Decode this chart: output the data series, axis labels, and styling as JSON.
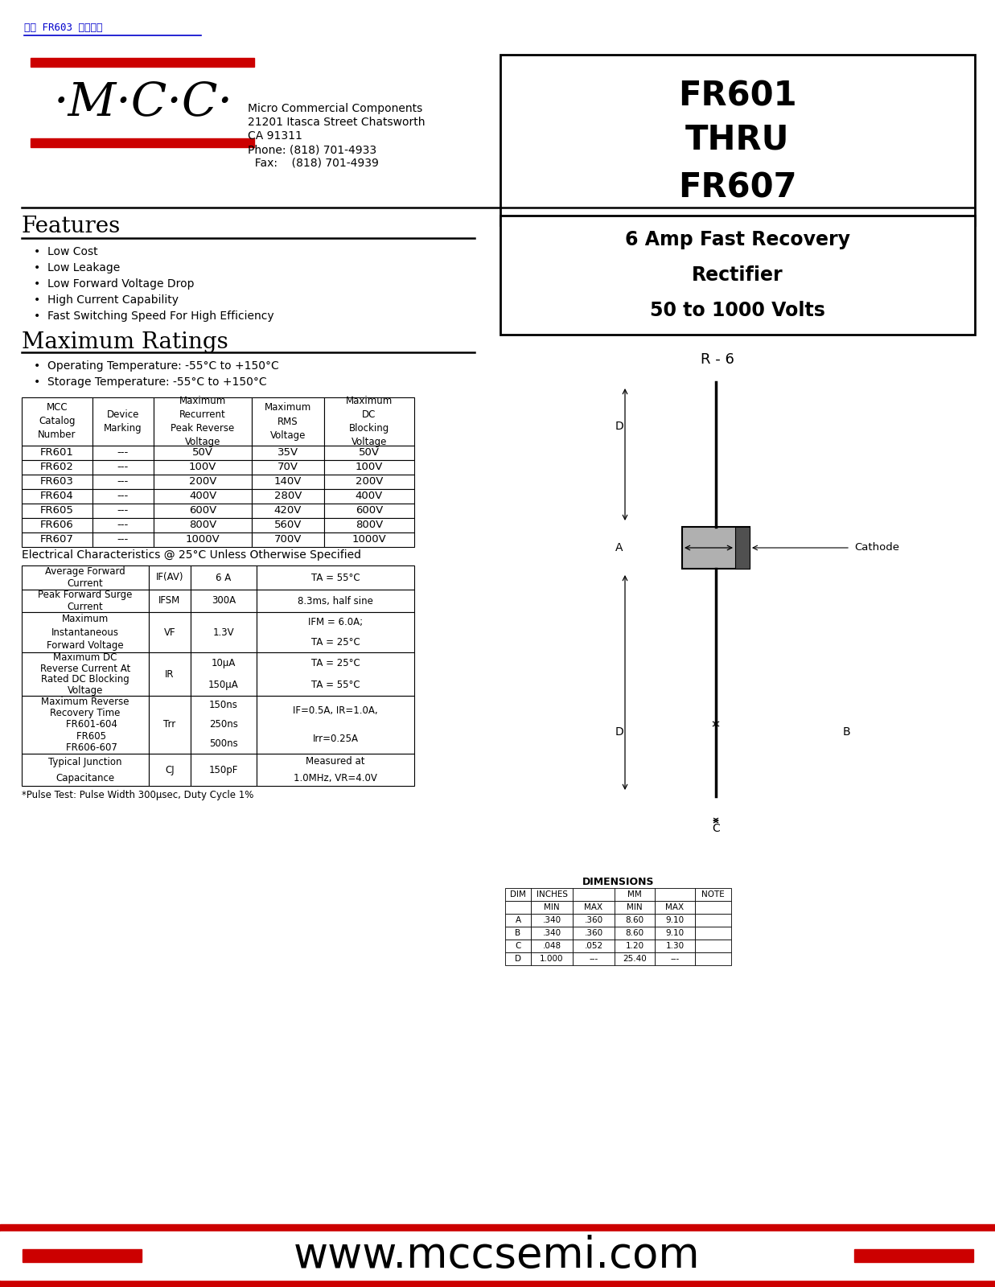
{
  "title_box": "FR601\nTHRU\nFR607",
  "subtitle": "6 Amp Fast Recovery\nRectifier\n50 to 1000 Volts",
  "company_name": "Micro Commercial Components",
  "company_addr1": "21201 Itasca Street Chatsworth",
  "company_addr2": "CA 91311",
  "company_phone": "Phone: (818) 701-4933",
  "company_fax": "  Fax:    (818) 701-4939",
  "top_link_text": "「」 FR603 「」「」",
  "features_title": "Features",
  "features_items": [
    "Low Cost",
    "Low Leakage",
    "Low Forward Voltage Drop",
    "High Current Capability",
    "Fast Switching Speed For High Efficiency"
  ],
  "max_ratings_title": "Maximum Ratings",
  "max_ratings_bullets": [
    "Operating Temperature: -55°C to +150°C",
    "Storage Temperature: -55°C to +150°C"
  ],
  "table1_headers": [
    "MCC\nCatalog\nNumber",
    "Device\nMarking",
    "Maximum\nRecurrent\nPeak Reverse\nVoltage",
    "Maximum\nRMS\nVoltage",
    "Maximum\nDC\nBlocking\nVoltage"
  ],
  "table1_rows": [
    [
      "FR601",
      "---",
      "50V",
      "35V",
      "50V"
    ],
    [
      "FR602",
      "---",
      "100V",
      "70V",
      "100V"
    ],
    [
      "FR603",
      "---",
      "200V",
      "140V",
      "200V"
    ],
    [
      "FR604",
      "---",
      "400V",
      "280V",
      "400V"
    ],
    [
      "FR605",
      "---",
      "600V",
      "420V",
      "600V"
    ],
    [
      "FR606",
      "---",
      "800V",
      "560V",
      "800V"
    ],
    [
      "FR607",
      "---",
      "1000V",
      "700V",
      "1000V"
    ]
  ],
  "elec_char_title": "Electrical Characteristics @ 25°C Unless Otherwise Specified",
  "table2_rows": [
    [
      "Average Forward\nCurrent",
      "IF(AV)",
      "6 A",
      "TA = 55°C"
    ],
    [
      "Peak Forward Surge\nCurrent",
      "IFSM",
      "300A",
      "8.3ms, half sine"
    ],
    [
      "Maximum\nInstantaneous\nForward Voltage",
      "VF",
      "1.3V",
      "IFM = 6.0A;\nTA = 25°C"
    ],
    [
      "Maximum DC\nReverse Current At\nRated DC Blocking\nVoltage",
      "IR",
      "10μA\n150μA",
      "TA = 25°C\nTA = 55°C"
    ],
    [
      "Maximum Reverse\nRecovery Time\n    FR601-604\n    FR605\n    FR606-607",
      "Trr",
      "150ns\n250ns\n500ns",
      "IF=0.5A, IR=1.0A,\nIrr=0.25A"
    ],
    [
      "Typical Junction\nCapacitance",
      "CJ",
      "150pF",
      "Measured at\n1.0MHz, VR=4.0V"
    ]
  ],
  "pulse_note": "*Pulse Test: Pulse Width 300μsec, Duty Cycle 1%",
  "website": "www.mccsemi.com",
  "dim_table_rows": [
    [
      "A",
      ".340",
      ".360",
      "8.60",
      "9.10",
      ""
    ],
    [
      "B",
      ".340",
      ".360",
      "8.60",
      "9.10",
      ""
    ],
    [
      "C",
      ".048",
      ".052",
      "1.20",
      "1.30",
      ""
    ],
    [
      "D",
      "1.000",
      "---",
      "25.40",
      "---",
      ""
    ]
  ],
  "bg_color": "#ffffff",
  "red_color": "#cc0000",
  "blue_color": "#0000cc",
  "black_color": "#000000"
}
